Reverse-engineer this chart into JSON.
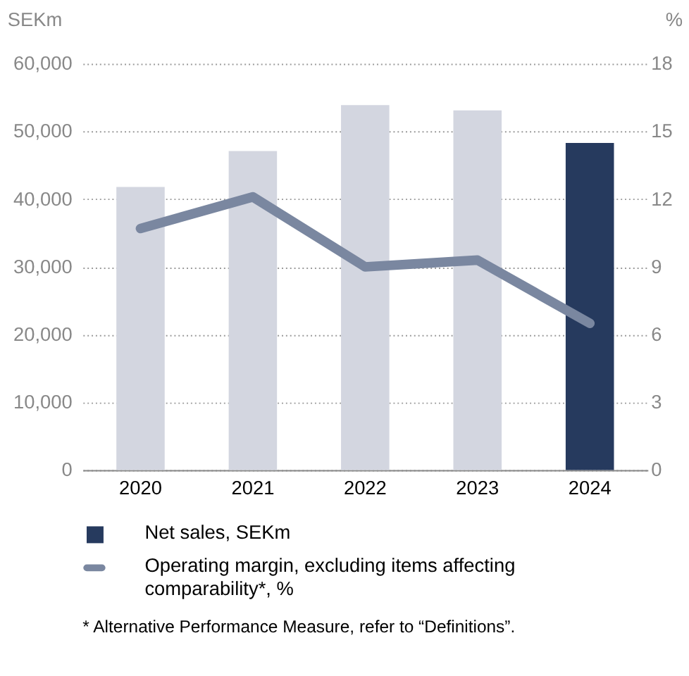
{
  "chart_data": {
    "type": "bar",
    "ylabel": "SEKm",
    "y2label": "%",
    "categories": [
      "2020",
      "2021",
      "2022",
      "2023",
      "2024"
    ],
    "series": [
      {
        "name": "Net sales, SEKm",
        "color": "#263a5e",
        "colors": [
          "#d3d6e0",
          "#d3d6e0",
          "#d3d6e0",
          "#d3d6e0",
          "#263a5e"
        ],
        "values": [
          41800,
          47100,
          53900,
          53100,
          48300
        ]
      },
      {
        "name": "Operating margin, excluding items affecting comparability*, %",
        "type": "line",
        "axis": "y2",
        "color": "#7a87a0",
        "values": [
          10.7,
          12.1,
          9.0,
          9.3,
          6.5
        ]
      }
    ],
    "ylim": [
      0,
      60000
    ],
    "yticks": [
      {
        "value": 0,
        "label": "0"
      },
      {
        "value": 10000,
        "label": "10,000"
      },
      {
        "value": 20000,
        "label": "20,000"
      },
      {
        "value": 30000,
        "label": "30,000"
      },
      {
        "value": 40000,
        "label": "40,000"
      },
      {
        "value": 50000,
        "label": "50,000"
      },
      {
        "value": 60000,
        "label": "60,000"
      }
    ],
    "y2lim": [
      0,
      18
    ],
    "y2ticks": [
      0,
      3,
      6,
      9,
      12,
      15,
      18
    ],
    "grid": "y",
    "legend": "bottom",
    "line_style": "solid",
    "annotations": [
      "*  Alternative Performance Measure, refer to “Definitions”."
    ]
  }
}
